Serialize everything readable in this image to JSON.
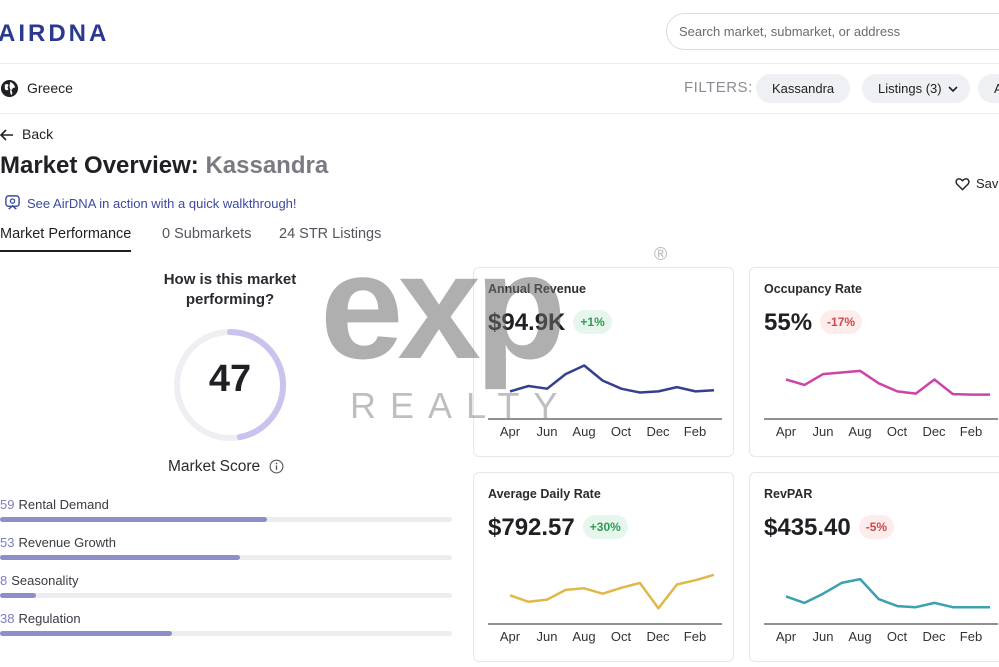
{
  "header": {
    "logo": "AIRDNA",
    "search_placeholder": "Search market, submarket, or address"
  },
  "filterbar": {
    "location": "Greece",
    "filters_label": "FILTERS:",
    "chips": [
      "Kassandra",
      "Listings (3)",
      "Ar"
    ]
  },
  "page": {
    "back_label": "Back",
    "title_prefix": "Market Overview:",
    "title_market": "Kassandra",
    "save_label": "Sav",
    "walkthrough_link": "See AirDNA in action with a quick walkthrough!"
  },
  "tabs": [
    "Market Performance",
    "0 Submarkets",
    "24 STR Listings"
  ],
  "score": {
    "question": "How is this market performing?",
    "value": "47",
    "fraction": 0.47,
    "label": "Market Score",
    "accent": "#c9c3ee"
  },
  "metrics": [
    {
      "value": "59",
      "label": "Rental Demand",
      "fraction": 0.59
    },
    {
      "value": "53",
      "label": "Revenue Growth",
      "fraction": 0.53
    },
    {
      "value": "8",
      "label": "Seasonality",
      "fraction": 0.08
    },
    {
      "value": "38",
      "label": "Regulation",
      "fraction": 0.38
    }
  ],
  "cards": [
    {
      "title": "Annual Revenue",
      "value": "$94.9K",
      "change": "+1%",
      "trend": "up",
      "color": "#34408e",
      "series": [
        0.4,
        0.5,
        0.45,
        0.72,
        0.88,
        0.6,
        0.45,
        0.38,
        0.4,
        0.48,
        0.4,
        0.42
      ]
    },
    {
      "title": "Occupancy Rate",
      "value": "55%",
      "change": "-17%",
      "trend": "down",
      "color": "#cc44a8",
      "series": [
        0.62,
        0.52,
        0.72,
        0.75,
        0.78,
        0.55,
        0.4,
        0.36,
        0.62,
        0.35,
        0.34,
        0.34
      ]
    },
    {
      "title": "Average Daily Rate",
      "value": "$792.57",
      "change": "+30%",
      "trend": "up",
      "color": "#e0b84a",
      "series": [
        0.42,
        0.3,
        0.34,
        0.52,
        0.55,
        0.45,
        0.56,
        0.65,
        0.18,
        0.62,
        0.7,
        0.8
      ]
    },
    {
      "title": "RevPAR",
      "value": "$435.40",
      "change": "-5%",
      "trend": "down",
      "color": "#3ba0b0",
      "series": [
        0.4,
        0.28,
        0.45,
        0.65,
        0.72,
        0.35,
        0.22,
        0.2,
        0.28,
        0.2,
        0.2,
        0.2
      ]
    }
  ],
  "x_axis": [
    "Apr",
    "Jun",
    "Aug",
    "Oct",
    "Dec",
    "Feb"
  ],
  "watermark": {
    "brand": "exp",
    "sub": "REALTY",
    "mark": "®"
  }
}
